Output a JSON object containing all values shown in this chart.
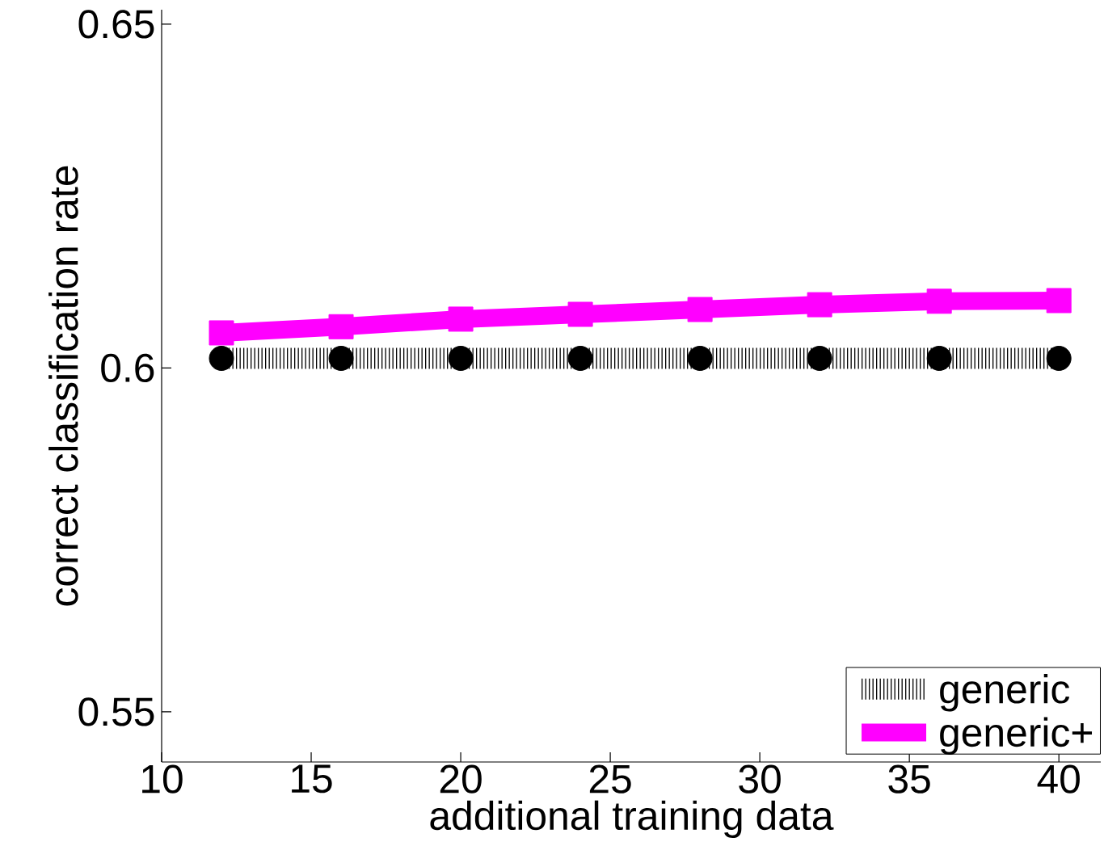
{
  "chart_data": {
    "type": "line",
    "xlabel": "additional training data",
    "ylabel": "correct classification rate",
    "x": [
      12,
      16,
      20,
      24,
      28,
      32,
      36,
      40
    ],
    "series": [
      {
        "name": "generic",
        "color": "#000000",
        "marker": "circle",
        "line_style": "dotted",
        "values": [
          0.6014,
          0.6014,
          0.6014,
          0.6014,
          0.6014,
          0.6014,
          0.6014,
          0.6014
        ]
      },
      {
        "name": "generic+",
        "color": "#ff00ff",
        "marker": "square",
        "line_style": "solid",
        "values": [
          0.6051,
          0.606,
          0.6071,
          0.6078,
          0.6085,
          0.6092,
          0.6097,
          0.6098
        ]
      }
    ],
    "xlim": [
      10,
      41.4
    ],
    "ylim": [
      0.5427,
      0.6521
    ],
    "xticks": [
      10,
      15,
      20,
      25,
      30,
      35,
      40
    ],
    "yticks": [
      0.55,
      0.6,
      0.65
    ],
    "legend": "bottom right"
  }
}
